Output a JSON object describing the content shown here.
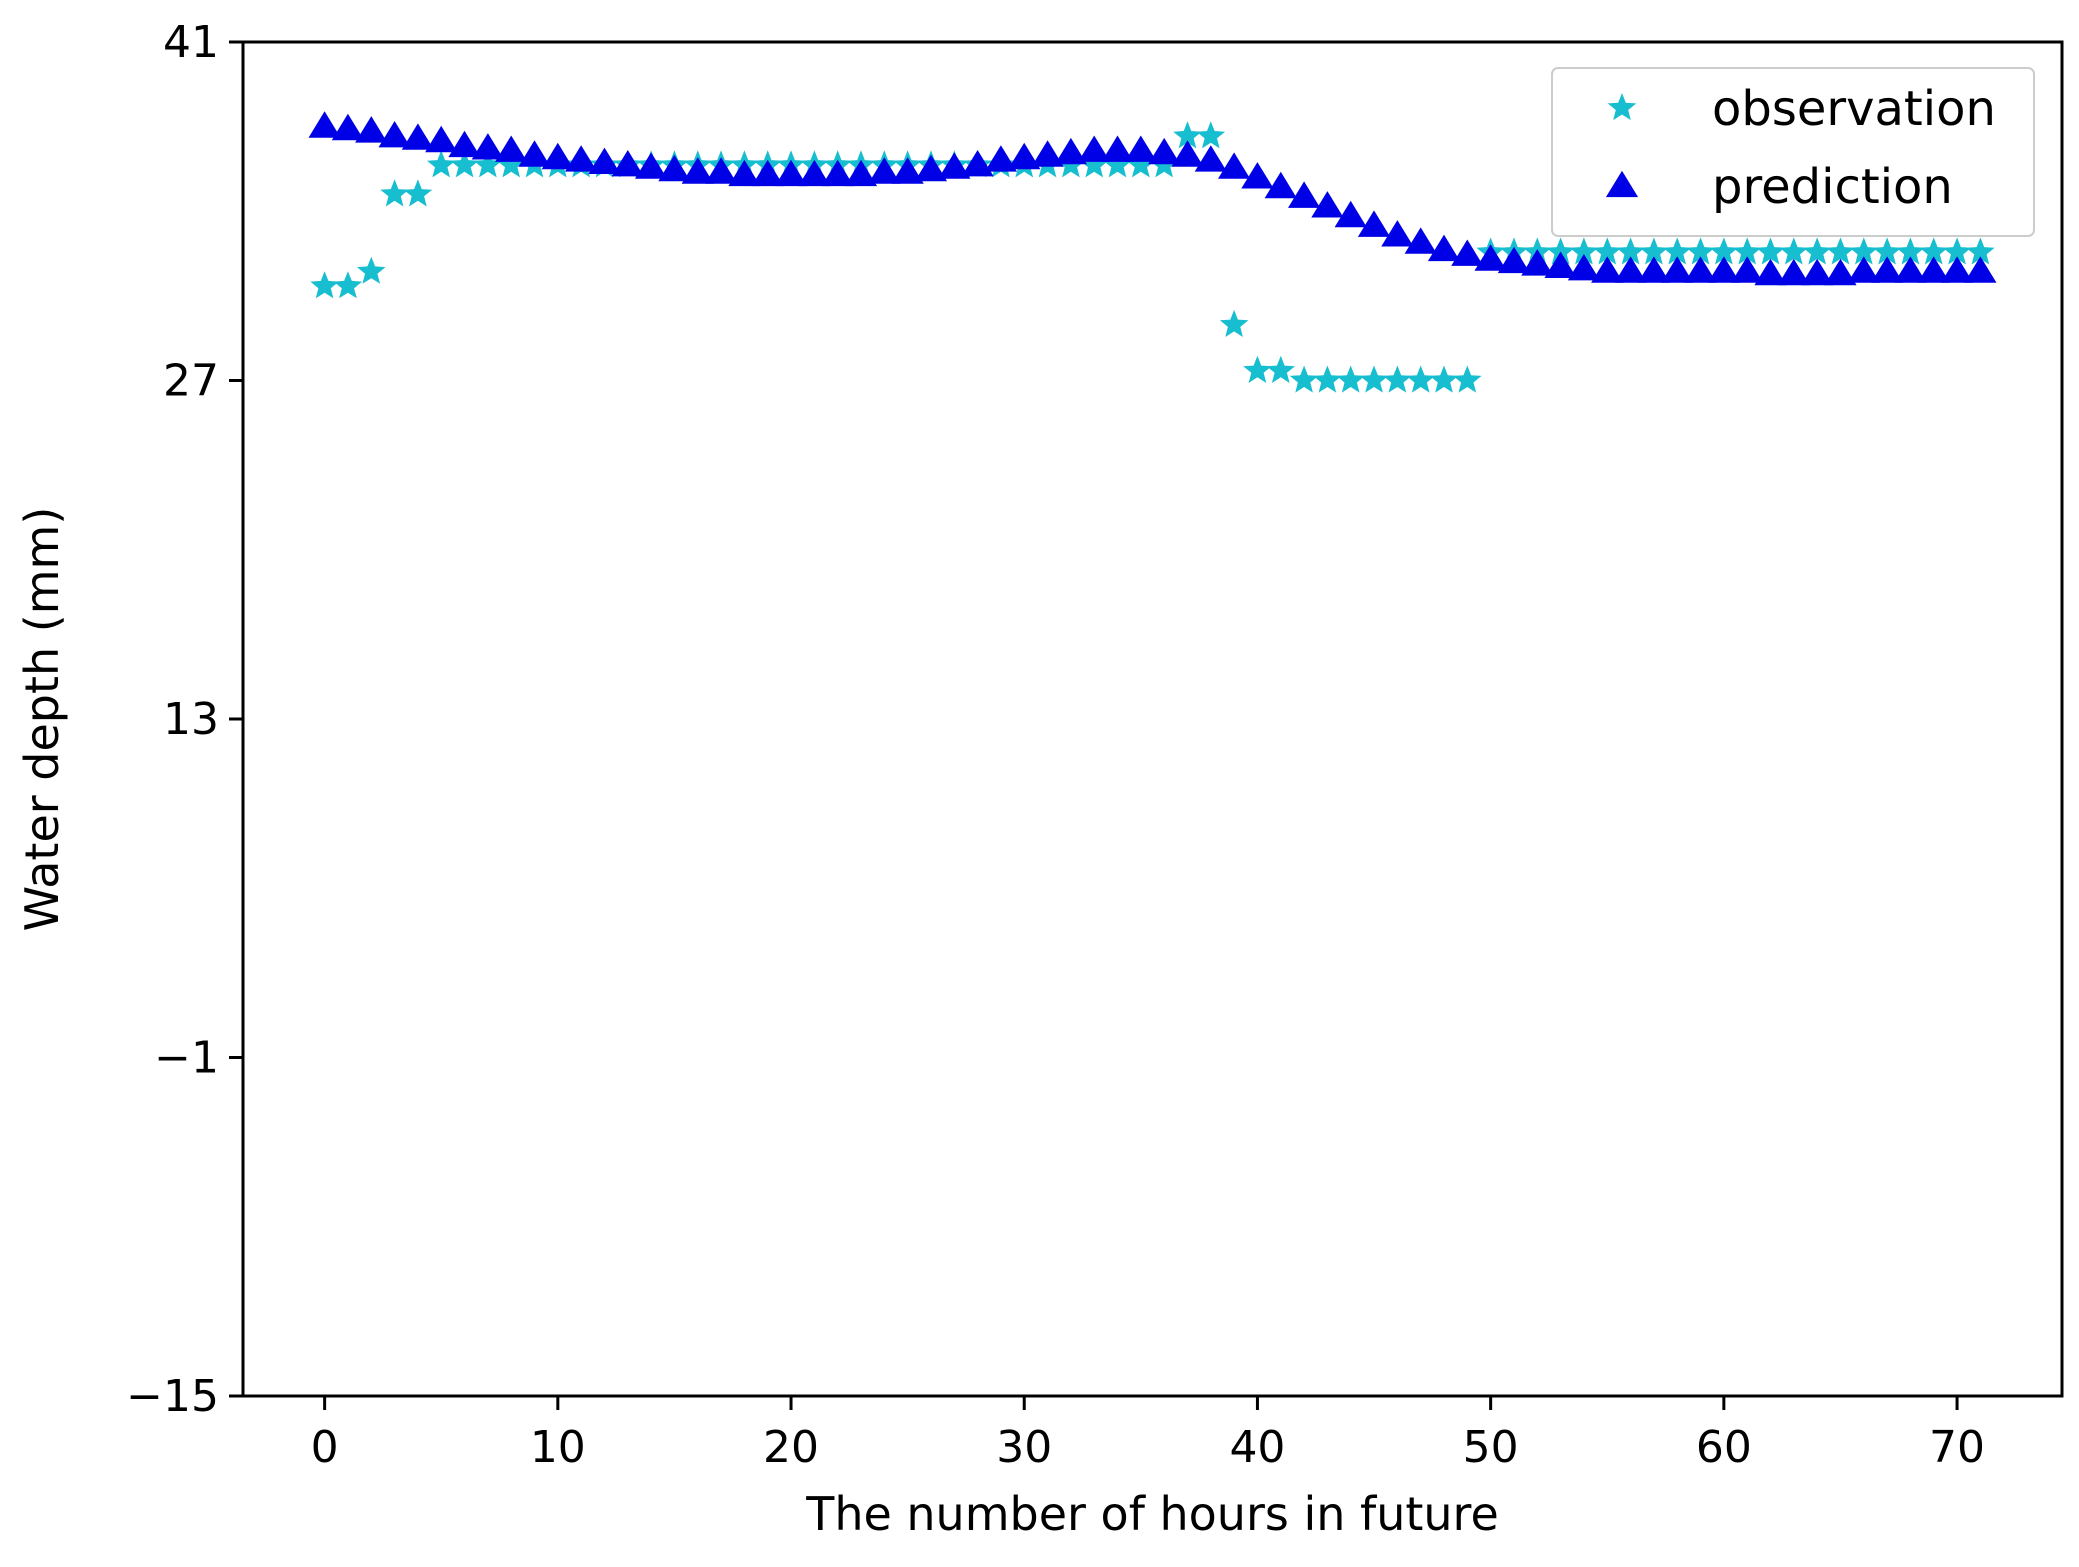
{
  "chart_data": {
    "type": "scatter",
    "title": "",
    "xlabel": "The number of hours in future",
    "ylabel": "Water depth (mm)",
    "xlim": [
      -3.5,
      74.5
    ],
    "ylim": [
      -15,
      41
    ],
    "x_ticks": [
      0,
      10,
      20,
      30,
      40,
      50,
      60,
      70
    ],
    "y_ticks": [
      -15,
      -1,
      13,
      27,
      41
    ],
    "x_tick_labels": [
      "0",
      "10",
      "20",
      "30",
      "40",
      "50",
      "60",
      "70"
    ],
    "y_tick_labels": [
      "−15",
      "−1",
      "13",
      "27",
      "41"
    ],
    "grid": false,
    "legend_position": "top-right",
    "series": [
      {
        "name": "observation",
        "marker": "star",
        "color": "#17becf",
        "x": [
          0,
          1,
          2,
          3,
          4,
          5,
          6,
          7,
          8,
          9,
          10,
          11,
          12,
          13,
          14,
          15,
          16,
          17,
          18,
          19,
          20,
          21,
          22,
          23,
          24,
          25,
          26,
          27,
          28,
          29,
          30,
          31,
          32,
          33,
          34,
          35,
          36,
          37,
          38,
          39,
          40,
          41,
          42,
          43,
          44,
          45,
          46,
          47,
          48,
          49,
          50,
          51,
          52,
          53,
          54,
          55,
          56,
          57,
          58,
          59,
          60,
          61,
          62,
          63,
          64,
          65,
          66,
          67,
          68,
          69,
          70,
          71
        ],
        "y": [
          30.9,
          30.9,
          31.5,
          34.7,
          34.7,
          35.9,
          35.9,
          35.9,
          35.9,
          35.9,
          35.9,
          35.9,
          35.9,
          35.9,
          35.9,
          35.9,
          35.9,
          35.9,
          35.9,
          35.9,
          35.9,
          35.9,
          35.9,
          35.9,
          35.9,
          35.9,
          35.9,
          35.9,
          35.9,
          35.9,
          35.9,
          35.9,
          35.9,
          35.9,
          35.9,
          35.9,
          35.9,
          37.1,
          37.1,
          29.3,
          27.4,
          27.4,
          27.0,
          27.0,
          27.0,
          27.0,
          27.0,
          27.0,
          27.0,
          27.0,
          32.3,
          32.3,
          32.3,
          32.3,
          32.3,
          32.3,
          32.3,
          32.3,
          32.3,
          32.3,
          32.3,
          32.3,
          32.3,
          32.3,
          32.3,
          32.3,
          32.3,
          32.3,
          32.3,
          32.3,
          32.3,
          32.3
        ]
      },
      {
        "name": "prediction",
        "marker": "triangle-up",
        "color": "#0000e6",
        "x": [
          0,
          1,
          2,
          3,
          4,
          5,
          6,
          7,
          8,
          9,
          10,
          11,
          12,
          13,
          14,
          15,
          16,
          17,
          18,
          19,
          20,
          21,
          22,
          23,
          24,
          25,
          26,
          27,
          28,
          29,
          30,
          31,
          32,
          33,
          34,
          35,
          36,
          37,
          38,
          39,
          40,
          41,
          42,
          43,
          44,
          45,
          46,
          47,
          48,
          49,
          50,
          51,
          52,
          53,
          54,
          55,
          56,
          57,
          58,
          59,
          60,
          61,
          62,
          63,
          64,
          65,
          66,
          67,
          68,
          69,
          70,
          71
        ],
        "y": [
          37.5,
          37.4,
          37.3,
          37.1,
          37.0,
          36.9,
          36.7,
          36.6,
          36.5,
          36.3,
          36.2,
          36.1,
          36.0,
          35.9,
          35.8,
          35.7,
          35.6,
          35.6,
          35.5,
          35.5,
          35.5,
          35.5,
          35.5,
          35.5,
          35.6,
          35.6,
          35.7,
          35.8,
          35.9,
          36.1,
          36.2,
          36.3,
          36.4,
          36.5,
          36.5,
          36.5,
          36.4,
          36.3,
          36.1,
          35.8,
          35.4,
          35.0,
          34.6,
          34.2,
          33.8,
          33.4,
          33.0,
          32.7,
          32.4,
          32.2,
          32.0,
          31.9,
          31.8,
          31.7,
          31.6,
          31.5,
          31.5,
          31.5,
          31.5,
          31.5,
          31.5,
          31.5,
          31.4,
          31.4,
          31.4,
          31.4,
          31.5,
          31.5,
          31.5,
          31.5,
          31.5,
          31.5
        ]
      }
    ]
  }
}
